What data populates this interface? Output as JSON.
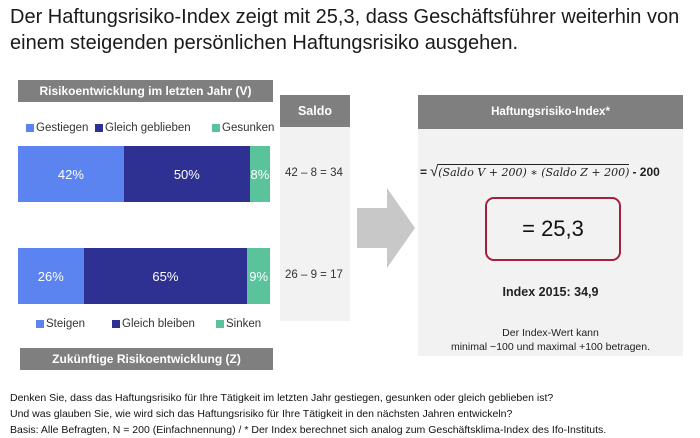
{
  "title": "Der Haftungsrisiko-Index zeigt mit 25,3, dass Geschäftsführer weiterhin von einem steigenden persönlichen Haftungsrisiko ausgehen.",
  "colors": {
    "up": "#5b84f0",
    "same": "#2e3192",
    "down": "#5ac39b",
    "header": "#7f7f7f",
    "box": "#a3203f"
  },
  "chart_data": [
    {
      "type": "bar",
      "stacked": true,
      "orientation": "horizontal",
      "title": "Risikoentwicklung im letzten Jahr (V)",
      "categories": [
        "Gestiegen",
        "Gleich geblieben",
        "Gesunken"
      ],
      "values": [
        42,
        50,
        8
      ],
      "labels": [
        "42%",
        "50%",
        "8%"
      ],
      "saldo": "42 – 8 = 34"
    },
    {
      "type": "bar",
      "stacked": true,
      "orientation": "horizontal",
      "title": "Zukünftige Risikoentwicklung (Z)",
      "categories": [
        "Steigen",
        "Gleich bleiben",
        "Sinken"
      ],
      "values": [
        26,
        65,
        9
      ],
      "labels": [
        "26%",
        "65%",
        "9%"
      ],
      "saldo": "26 – 9 = 17"
    }
  ],
  "saldo_header": "Saldo",
  "index": {
    "header": "Haftungsrisiko-Index*",
    "formula_prefix": "=",
    "formula": "(Saldo V + 200) ∗ (Saldo Z + 200)",
    "formula_suffix": "- 200",
    "result": "= 25,3",
    "previous": "Index 2015: 34,9",
    "note1": "Der Index-Wert kann",
    "note2": "minimal −100 und maximal +100 betragen."
  },
  "footer": [
    "Denken Sie, dass das Haftungsrisiko für Ihre Tätigkeit im letzten Jahr gestiegen, gesunken oder gleich geblieben ist?",
    "Und was glauben Sie, wie wird sich das Haftungsrisiko für Ihre Tätigkeit in den nächsten Jahren entwickeln?",
    "Basis: Alle Befragten, N = 200 (Einfachnennung) / * Der Index berechnet sich analog zum Geschäftsklima-Index des Ifo-Instituts."
  ]
}
